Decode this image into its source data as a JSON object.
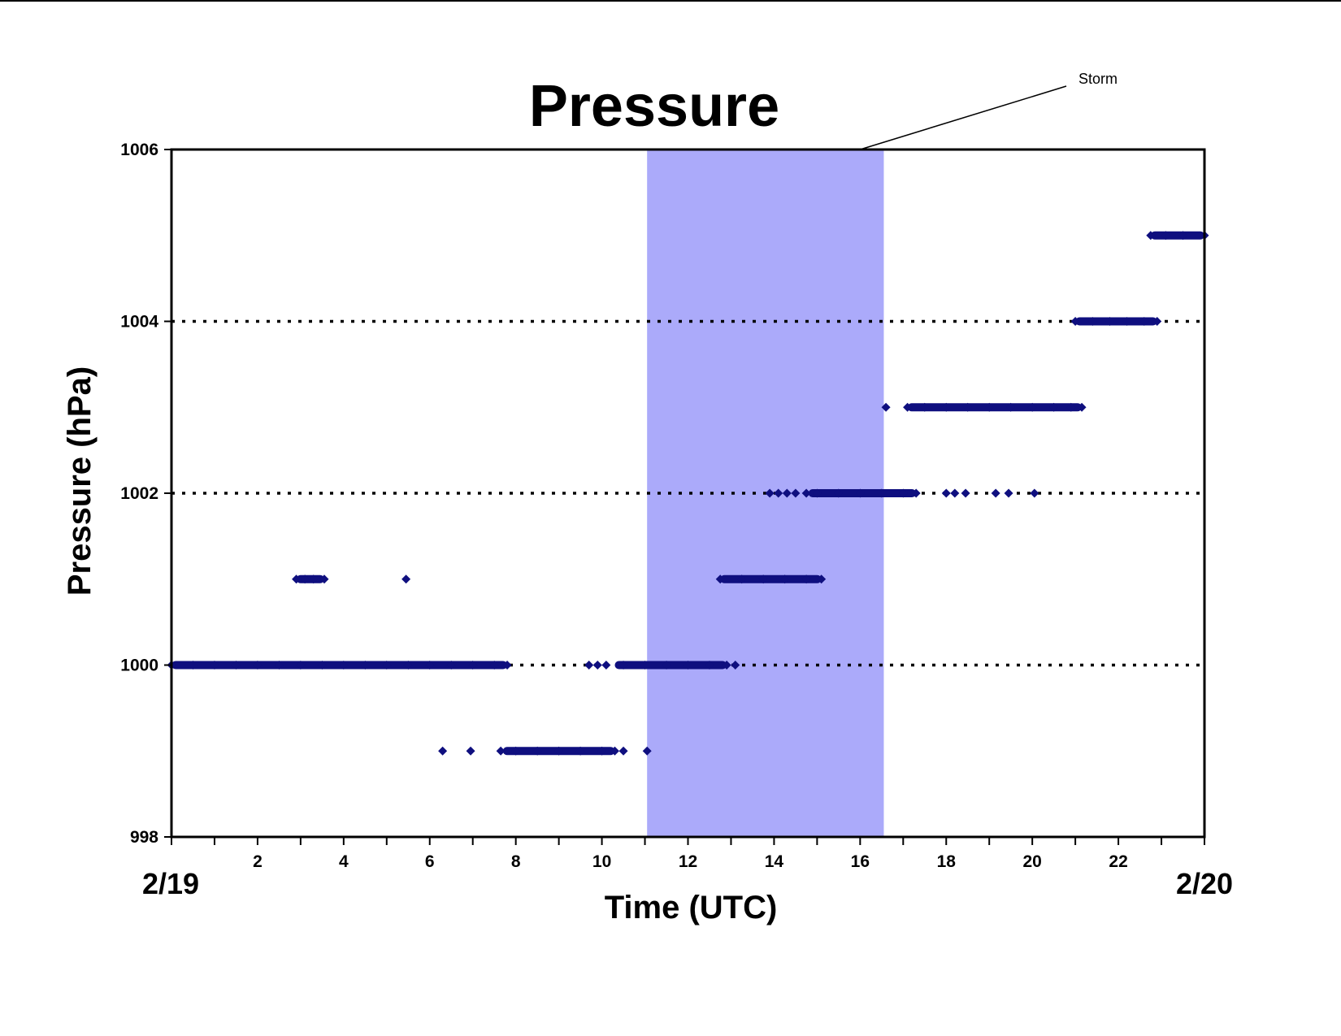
{
  "chart_data": {
    "type": "scatter",
    "title": "Pressure",
    "xlabel": "Time (UTC)",
    "ylabel": "Pressure (hPa)",
    "xlim": [
      0,
      24
    ],
    "ylim": [
      998,
      1006
    ],
    "x_ticks": [
      "2",
      "4",
      "6",
      "8",
      "10",
      "12",
      "14",
      "16",
      "18",
      "20",
      "22"
    ],
    "y_ticks": [
      "998",
      "1000",
      "1002",
      "1004",
      "1006"
    ],
    "start_date_label": "2/19",
    "end_date_label": "2/20",
    "gridlines": [
      1000,
      1002,
      1004
    ],
    "grid": "dotted horizontal",
    "shaded_region": {
      "label": "Storm",
      "x": [
        11.05,
        16.55
      ],
      "color": "#abaafa"
    },
    "marker_color": "#0f0f7f",
    "series": [
      {
        "points": [
          {
            "x": 0.0,
            "y": 1000
          },
          {
            "x": 0.5,
            "y": 1000
          },
          {
            "x": 1.0,
            "y": 1000
          },
          {
            "x": 1.5,
            "y": 1000
          },
          {
            "x": 2.0,
            "y": 1000
          },
          {
            "x": 2.5,
            "y": 1000
          },
          {
            "x": 3.0,
            "y": 1000
          },
          {
            "x": 3.5,
            "y": 1000
          },
          {
            "x": 4.0,
            "y": 1000
          },
          {
            "x": 4.5,
            "y": 1000
          },
          {
            "x": 5.0,
            "y": 1000
          },
          {
            "x": 5.5,
            "y": 1000
          },
          {
            "x": 6.0,
            "y": 1000
          },
          {
            "x": 6.5,
            "y": 1000
          },
          {
            "x": 7.0,
            "y": 1000
          },
          {
            "x": 7.5,
            "y": 1000
          },
          {
            "x": 7.8,
            "y": 1000
          },
          {
            "x": 9.7,
            "y": 1000
          },
          {
            "x": 9.9,
            "y": 1000
          },
          {
            "x": 10.1,
            "y": 1000
          },
          {
            "x": 10.5,
            "y": 1000
          },
          {
            "x": 11.0,
            "y": 1000
          },
          {
            "x": 11.5,
            "y": 1000
          },
          {
            "x": 12.0,
            "y": 1000
          },
          {
            "x": 12.5,
            "y": 1000
          },
          {
            "x": 12.9,
            "y": 1000
          },
          {
            "x": 13.1,
            "y": 1000
          },
          {
            "x": 2.9,
            "y": 1001
          },
          {
            "x": 3.1,
            "y": 1001
          },
          {
            "x": 3.3,
            "y": 1001
          },
          {
            "x": 3.55,
            "y": 1001
          },
          {
            "x": 5.45,
            "y": 1001
          },
          {
            "x": 12.75,
            "y": 1001
          },
          {
            "x": 13.25,
            "y": 1001
          },
          {
            "x": 13.75,
            "y": 1001
          },
          {
            "x": 14.25,
            "y": 1001
          },
          {
            "x": 14.75,
            "y": 1001
          },
          {
            "x": 15.1,
            "y": 1001
          },
          {
            "x": 6.3,
            "y": 999
          },
          {
            "x": 6.95,
            "y": 999
          },
          {
            "x": 7.65,
            "y": 999
          },
          {
            "x": 8.0,
            "y": 999
          },
          {
            "x": 8.5,
            "y": 999
          },
          {
            "x": 9.0,
            "y": 999
          },
          {
            "x": 9.5,
            "y": 999
          },
          {
            "x": 10.0,
            "y": 999
          },
          {
            "x": 10.3,
            "y": 999
          },
          {
            "x": 10.5,
            "y": 999
          },
          {
            "x": 11.05,
            "y": 999
          },
          {
            "x": 13.9,
            "y": 1002
          },
          {
            "x": 14.1,
            "y": 1002
          },
          {
            "x": 14.3,
            "y": 1002
          },
          {
            "x": 14.5,
            "y": 1002
          },
          {
            "x": 14.75,
            "y": 1002
          },
          {
            "x": 15.0,
            "y": 1002
          },
          {
            "x": 15.5,
            "y": 1002
          },
          {
            "x": 16.0,
            "y": 1002
          },
          {
            "x": 16.5,
            "y": 1002
          },
          {
            "x": 17.0,
            "y": 1002
          },
          {
            "x": 17.3,
            "y": 1002
          },
          {
            "x": 18.0,
            "y": 1002
          },
          {
            "x": 18.2,
            "y": 1002
          },
          {
            "x": 18.45,
            "y": 1002
          },
          {
            "x": 19.15,
            "y": 1002
          },
          {
            "x": 19.45,
            "y": 1002
          },
          {
            "x": 20.05,
            "y": 1002
          },
          {
            "x": 16.6,
            "y": 1003
          },
          {
            "x": 17.1,
            "y": 1003
          },
          {
            "x": 17.5,
            "y": 1003
          },
          {
            "x": 18.0,
            "y": 1003
          },
          {
            "x": 18.5,
            "y": 1003
          },
          {
            "x": 19.0,
            "y": 1003
          },
          {
            "x": 19.5,
            "y": 1003
          },
          {
            "x": 20.0,
            "y": 1003
          },
          {
            "x": 20.5,
            "y": 1003
          },
          {
            "x": 20.9,
            "y": 1003
          },
          {
            "x": 21.15,
            "y": 1003
          },
          {
            "x": 21.0,
            "y": 1004
          },
          {
            "x": 21.4,
            "y": 1004
          },
          {
            "x": 21.8,
            "y": 1004
          },
          {
            "x": 22.2,
            "y": 1004
          },
          {
            "x": 22.6,
            "y": 1004
          },
          {
            "x": 22.9,
            "y": 1004
          },
          {
            "x": 22.75,
            "y": 1005
          },
          {
            "x": 23.1,
            "y": 1005
          },
          {
            "x": 23.5,
            "y": 1005
          },
          {
            "x": 24.0,
            "y": 1005
          }
        ],
        "dense_segments": [
          {
            "y": 1000,
            "x": [
              0.0,
              7.8
            ]
          },
          {
            "y": 1000,
            "x": [
              10.3,
              12.9
            ]
          },
          {
            "y": 999,
            "x": [
              7.7,
              10.3
            ]
          },
          {
            "y": 1001,
            "x": [
              2.9,
              3.55
            ]
          },
          {
            "y": 1001,
            "x": [
              12.75,
              15.1
            ]
          },
          {
            "y": 1002,
            "x": [
              14.8,
              17.3
            ]
          },
          {
            "y": 1003,
            "x": [
              17.1,
              21.15
            ]
          },
          {
            "y": 1004,
            "x": [
              21.0,
              22.9
            ]
          },
          {
            "y": 1005,
            "x": [
              22.75,
              24.0
            ]
          }
        ]
      }
    ]
  }
}
